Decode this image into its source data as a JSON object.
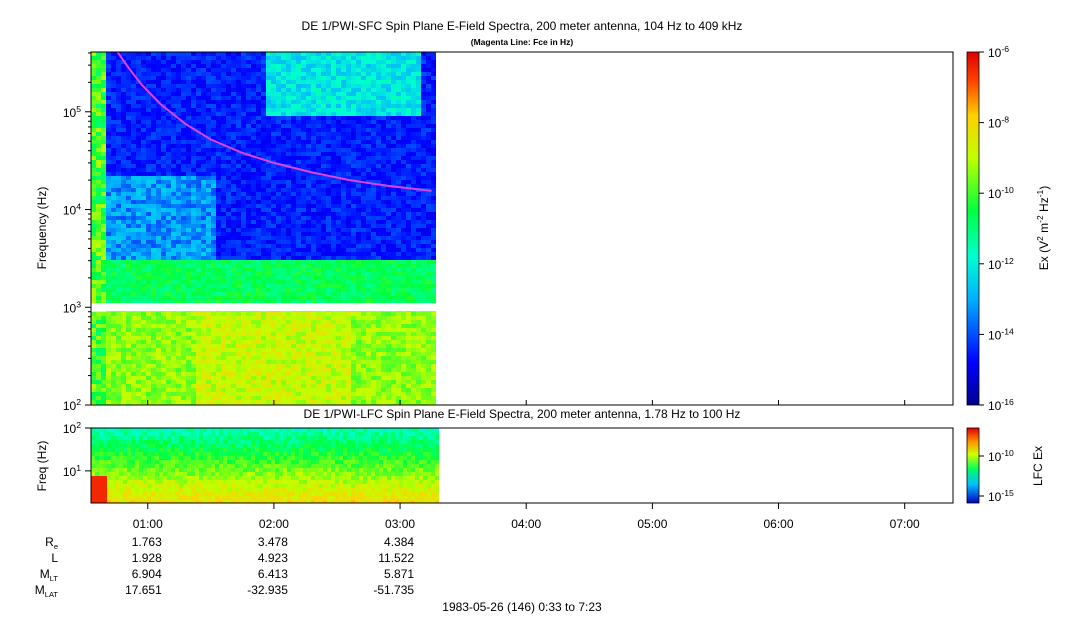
{
  "chart_data": [
    {
      "type": "heatmap",
      "title": "DE 1/PWI-SFC  Spin Plane E-Field Spectra, 200 meter antenna, 104 Hz to 409 kHz",
      "subtitle": "(Magenta Line: Fce in Hz)",
      "ylabel": "Frequency (Hz)",
      "yscale": "log",
      "ylim": [
        100,
        409000
      ],
      "yticks": [
        {
          "value": 100,
          "label_base": "10",
          "label_exp": "2"
        },
        {
          "value": 1000,
          "label_base": "10",
          "label_exp": "3"
        },
        {
          "value": 10000,
          "label_base": "10",
          "label_exp": "4"
        },
        {
          "value": 100000,
          "label_base": "10",
          "label_exp": "5"
        }
      ],
      "colorbar": {
        "label_parts": [
          "Ex (V",
          "2",
          " m",
          "-2",
          " Hz",
          "-1",
          ")"
        ],
        "scale": "log",
        "range": [
          1e-16,
          1e-06
        ],
        "ticks": [
          {
            "value": 1e-06,
            "label_base": "10",
            "label_exp": "-6"
          },
          {
            "value": 1e-08,
            "label_base": "10",
            "label_exp": "-8"
          },
          {
            "value": 1e-10,
            "label_base": "10",
            "label_exp": "-10"
          },
          {
            "value": 1e-12,
            "label_base": "10",
            "label_exp": "-12"
          },
          {
            "value": 1e-14,
            "label_base": "10",
            "label_exp": "-14"
          },
          {
            "value": 1e-16,
            "label_base": "10",
            "label_exp": "-16"
          }
        ]
      },
      "fce_line": {
        "color": "#e040e0",
        "x_hours": [
          0.76,
          0.85,
          0.95,
          1.1,
          1.3,
          1.5,
          1.75,
          2.0,
          2.3,
          2.6,
          2.9,
          3.25
        ],
        "y_hz": [
          409000,
          280000,
          190000,
          120000,
          75000,
          52000,
          38000,
          30000,
          24000,
          20000,
          17500,
          15500
        ]
      },
      "data_gap_hz": [
        900,
        1100
      ]
    },
    {
      "type": "heatmap",
      "title": "DE 1/PWI-LFC  Spin Plane E-Field Spectra, 200 meter antenna, 1.78 Hz to 100 Hz",
      "ylabel": "Freq (Hz)",
      "yscale": "log",
      "ylim": [
        1.78,
        100
      ],
      "yticks": [
        {
          "value": 10,
          "label_base": "10",
          "label_exp": "1"
        },
        {
          "value": 100,
          "label_base": "10",
          "label_exp": "2"
        }
      ],
      "colorbar": {
        "label": "LFC Ex",
        "scale": "log",
        "ticks": [
          {
            "value": 1e-10,
            "label_base": "10",
            "label_exp": "-10"
          },
          {
            "value": 1e-15,
            "label_base": "10",
            "label_exp": "-15"
          }
        ]
      }
    }
  ],
  "time_axis": {
    "range_hours": [
      0.55,
      7.383
    ],
    "data_end_hours": 3.28,
    "ticks": [
      {
        "hour": 1,
        "label": "01:00"
      },
      {
        "hour": 2,
        "label": "02:00"
      },
      {
        "hour": 3,
        "label": "03:00"
      },
      {
        "hour": 4,
        "label": "04:00"
      },
      {
        "hour": 5,
        "label": "05:00"
      },
      {
        "hour": 6,
        "label": "06:00"
      },
      {
        "hour": 7,
        "label": "07:00"
      }
    ],
    "footer": "1983-05-26 (146) 0:33 to 7:23"
  },
  "ephemeris": [
    {
      "name": "R",
      "sub": "e",
      "values": [
        "1.763",
        "3.478",
        "4.384"
      ]
    },
    {
      "name": "L",
      "sub": "",
      "values": [
        "1.928",
        "4.923",
        "11.522"
      ]
    },
    {
      "name": "M",
      "sub": "LT",
      "values": [
        "6.904",
        "6.413",
        "5.871"
      ]
    },
    {
      "name": "M",
      "sub": "LAT",
      "values": [
        "17.651",
        "-32.935",
        "-51.735"
      ]
    }
  ]
}
